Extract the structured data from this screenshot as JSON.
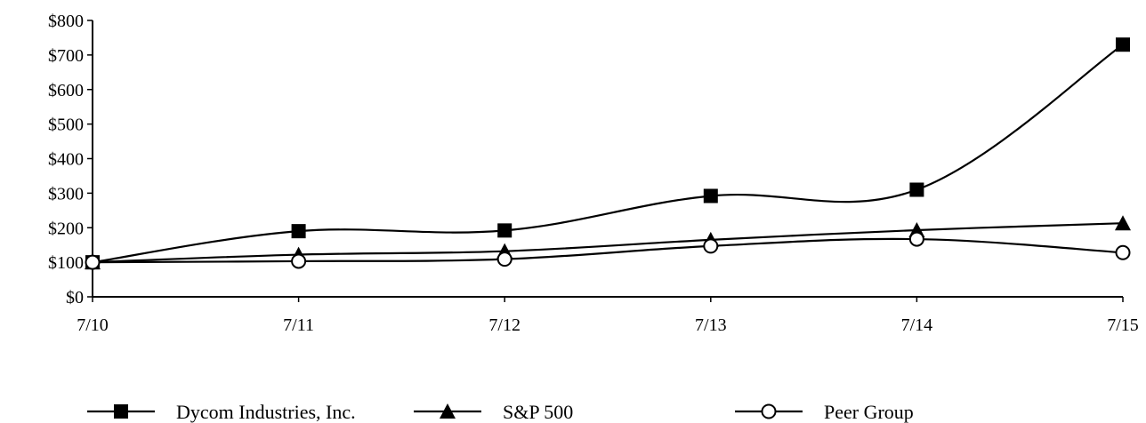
{
  "chart_data": {
    "type": "line",
    "categories": [
      "7/10",
      "7/11",
      "7/12",
      "7/13",
      "7/14",
      "7/15"
    ],
    "ylim": [
      0,
      800
    ],
    "y_ticks": [
      "$0",
      "$100",
      "$200",
      "$300",
      "$400",
      "$500",
      "$600",
      "$700",
      "$800"
    ],
    "y_tick_values": [
      0,
      100,
      200,
      300,
      400,
      500,
      600,
      700,
      800
    ],
    "grid": false,
    "legend_position": "bottom",
    "series": [
      {
        "name": "Dycom Industries, Inc.",
        "marker": "square",
        "values": [
          100,
          190,
          192,
          292,
          310,
          730
        ]
      },
      {
        "name": "S&P 500",
        "marker": "triangle",
        "values": [
          100,
          122,
          132,
          165,
          193,
          213
        ]
      },
      {
        "name": "Peer Group",
        "marker": "circle-open",
        "values": [
          100,
          103,
          109,
          147,
          167,
          128
        ]
      }
    ],
    "colors": {
      "line": "#000000",
      "background": "#ffffff"
    }
  }
}
